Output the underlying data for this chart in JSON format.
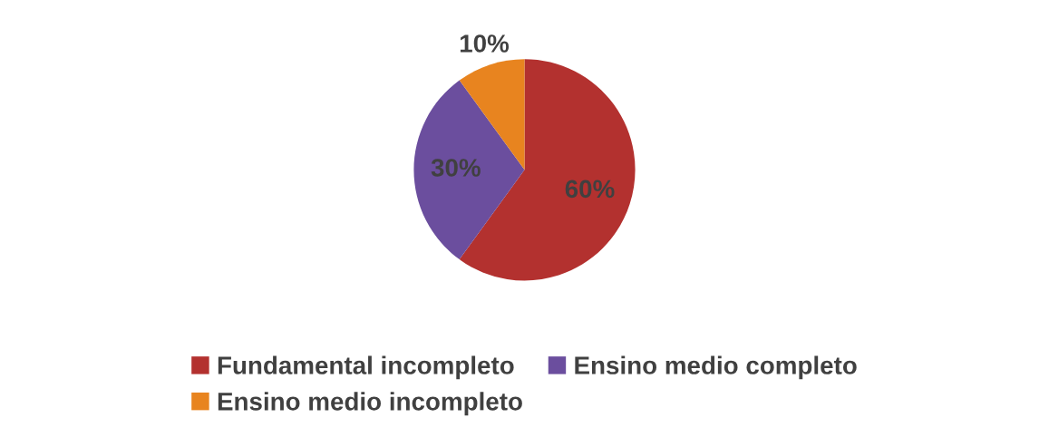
{
  "chart_data": {
    "type": "pie",
    "categories": [
      "Fundamental incompleto",
      "Ensino medio completo",
      "Ensino medio incompleto"
    ],
    "values": [
      60,
      30,
      10
    ],
    "colors": [
      "#b3312f",
      "#6b4e9e",
      "#e8841f"
    ],
    "value_labels": [
      "60%",
      "30%",
      "10%"
    ],
    "legend": "bottom"
  }
}
